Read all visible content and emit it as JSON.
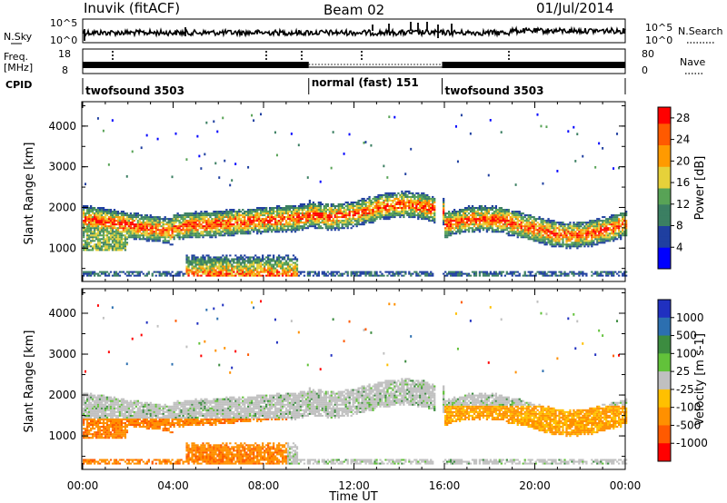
{
  "header": {
    "station": "Inuvik (fitACF)",
    "beam": "Beam 02",
    "date": "01/Jul/2014"
  },
  "strip_labels": {
    "nsky": "N.Sky",
    "nsky_top": "10^5",
    "nsky_bottom": "10^0",
    "nsearch": "N.Search",
    "nsearch_top": "10^5",
    "nsearch_bottom": "10^0",
    "freq": "Freq.",
    "freq_unit": "[MHz]",
    "freq_top": "18",
    "freq_bottom": "8",
    "nave": "Nave",
    "nave_top": "80",
    "nave_bottom": "0",
    "cpid": "CPID"
  },
  "cpid_segments": [
    {
      "label": "twofsound 3503",
      "start_hour": 0,
      "end_hour": 10.0
    },
    {
      "label": "normal (fast) 151",
      "start_hour": 10.0,
      "end_hour": 15.9
    },
    {
      "label": "twofsound 3503",
      "start_hour": 15.9,
      "end_hour": 24
    }
  ],
  "x_axis": {
    "label": "Time UT",
    "ticks": [
      "00:00",
      "04:00",
      "08:00",
      "12:00",
      "16:00",
      "20:00",
      "00:00"
    ]
  },
  "colors": {
    "power_scale": [
      "#0000ff",
      "#1f3fa0",
      "#3b7f62",
      "#58a356",
      "#e6d13a",
      "#ff9a00",
      "#ff5a00",
      "#ff0000"
    ],
    "velocity_scale": [
      "#2030c0",
      "#2c6fb0",
      "#3c8c40",
      "#62c23a",
      "#c0c0c0",
      "#ffc000",
      "#ff9000",
      "#ff5a00",
      "#ff0000"
    ]
  },
  "chart_data": [
    {
      "type": "heatmap",
      "name": "power",
      "title": "",
      "xlabel": "Time UT",
      "ylabel": "Slant Range [km]",
      "xlim": [
        0,
        24
      ],
      "ylim": [
        180,
        4600
      ],
      "yticks": [
        "1000",
        "2000",
        "3000",
        "4000"
      ],
      "colorbar": {
        "label": "Power [dB]",
        "ticks": [
          "4",
          "8",
          "12",
          "16",
          "20",
          "24",
          "28"
        ],
        "range": [
          0,
          30
        ]
      }
    },
    {
      "type": "heatmap",
      "name": "velocity",
      "title": "",
      "xlabel": "Time UT",
      "ylabel": "Slant Range [km]",
      "xlim": [
        0,
        24
      ],
      "ylim": [
        180,
        4600
      ],
      "yticks": [
        "1000",
        "2000",
        "3000",
        "4000"
      ],
      "colorbar": {
        "label": "Velocity [m s-1]",
        "ticks": [
          "1000",
          "500",
          "100",
          "25",
          "-25",
          "-100",
          "-500",
          "-1000"
        ]
      }
    }
  ]
}
